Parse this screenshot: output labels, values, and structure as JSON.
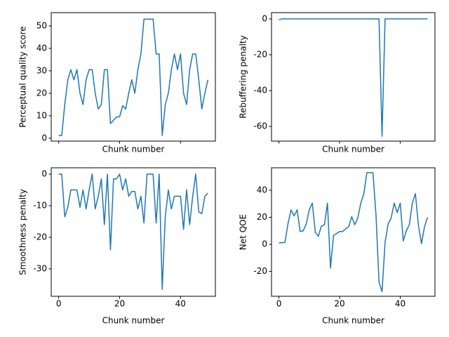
{
  "chart_data": [
    {
      "type": "line",
      "x_label": "Chunk number",
      "y_label": "Perceptual quality score",
      "xlim": [
        -2.45,
        51.45
      ],
      "xticks": [
        0,
        20,
        40
      ],
      "xtick_labels": false,
      "ylim": [
        -1.3,
        55.9
      ],
      "yticks": [
        0,
        10,
        20,
        30,
        40,
        50
      ],
      "x": [
        0,
        1,
        2,
        3,
        4,
        5,
        6,
        7,
        8,
        9,
        10,
        11,
        12,
        13,
        14,
        15,
        16,
        17,
        18,
        19,
        20,
        21,
        22,
        23,
        24,
        25,
        26,
        27,
        28,
        29,
        30,
        31,
        32,
        33,
        34,
        35,
        36,
        37,
        38,
        39,
        40,
        41,
        42,
        43,
        44,
        45,
        46,
        47,
        48,
        49
      ],
      "series": [
        {
          "color": "#1f77b4",
          "values": [
            1.2,
            1.2,
            15,
            26,
            30.5,
            26,
            30.5,
            20,
            15,
            26,
            30.5,
            30.5,
            20,
            13,
            15,
            30.5,
            30.5,
            6.5,
            8,
            9.5,
            9.5,
            14.5,
            13,
            20,
            26,
            20,
            30.5,
            37.5,
            53,
            53,
            53,
            53,
            37.5,
            37.5,
            1.2,
            15,
            20,
            30.5,
            37.5,
            30.5,
            37.5,
            20,
            15,
            30.5,
            37.5,
            37.5,
            26,
            13,
            20,
            26
          ]
        }
      ]
    },
    {
      "type": "line",
      "x_label": "Chunk number",
      "y_label": "Rebuffering penalty",
      "xlim": [
        -2.45,
        51.45
      ],
      "xticks": [
        0,
        20,
        40
      ],
      "xtick_labels": false,
      "ylim": [
        -68.2,
        3.5
      ],
      "yticks": [
        -60,
        -40,
        -20,
        0
      ],
      "x": [
        0,
        1,
        2,
        3,
        4,
        5,
        6,
        7,
        8,
        9,
        10,
        11,
        12,
        13,
        14,
        15,
        16,
        17,
        18,
        19,
        20,
        21,
        22,
        23,
        24,
        25,
        26,
        27,
        28,
        29,
        30,
        31,
        32,
        33,
        34,
        35,
        36,
        37,
        38,
        39,
        40,
        41,
        42,
        43,
        44,
        45,
        46,
        47,
        48,
        49
      ],
      "series": [
        {
          "color": "#1f77b4",
          "values": [
            -0.5,
            0,
            0,
            0,
            0,
            0,
            0,
            0,
            0,
            0,
            0,
            0,
            0,
            0,
            0,
            0,
            0,
            0,
            0,
            0,
            0,
            0,
            0,
            0,
            0,
            0,
            0,
            0,
            0,
            0,
            0,
            0,
            0,
            0,
            -65.5,
            0,
            0,
            0,
            0,
            0,
            0,
            0,
            0,
            0,
            0,
            0,
            0,
            0,
            0,
            0
          ]
        }
      ]
    },
    {
      "type": "line",
      "x_label": "Chunk number",
      "y_label": "Smoothness penalty",
      "xlim": [
        -2.45,
        51.45
      ],
      "xticks": [
        0,
        20,
        40
      ],
      "xtick_labels": true,
      "ylim": [
        -38.7,
        2
      ],
      "yticks": [
        -30,
        -20,
        -10,
        0
      ],
      "x": [
        0,
        1,
        2,
        3,
        4,
        5,
        6,
        7,
        8,
        9,
        10,
        11,
        12,
        13,
        14,
        15,
        16,
        17,
        18,
        19,
        20,
        21,
        22,
        23,
        24,
        25,
        26,
        27,
        28,
        29,
        30,
        31,
        32,
        33,
        34,
        35,
        36,
        37,
        38,
        39,
        40,
        41,
        42,
        43,
        44,
        45,
        46,
        47,
        48,
        49
      ],
      "series": [
        {
          "color": "#1f77b4",
          "values": [
            0,
            0,
            -13.5,
            -10.5,
            -5,
            -5,
            -5,
            -10.5,
            -5,
            -11,
            -5,
            0,
            -11,
            -7,
            -1.5,
            -16,
            0,
            -24,
            -1.5,
            -1.5,
            0,
            -5,
            -1.5,
            -7,
            -5.5,
            -5.5,
            -11,
            -7,
            -15.5,
            0,
            0,
            0,
            -15.5,
            0,
            -36.5,
            -13.5,
            -5,
            -11,
            -7,
            -7,
            -7,
            -17.5,
            -5,
            -16,
            -7,
            0,
            -12,
            -12.5,
            -7,
            -6
          ]
        }
      ]
    },
    {
      "type": "line",
      "x_label": "Chunk number",
      "y_label": "Net QOE",
      "xlim": [
        -2.45,
        51.45
      ],
      "xticks": [
        0,
        20,
        40
      ],
      "xtick_labels": true,
      "ylim": [
        -38.4,
        56.6
      ],
      "yticks": [
        -20,
        0,
        20,
        40
      ],
      "x": [
        0,
        1,
        2,
        3,
        4,
        5,
        6,
        7,
        8,
        9,
        10,
        11,
        12,
        13,
        14,
        15,
        16,
        17,
        18,
        19,
        20,
        21,
        22,
        23,
        24,
        25,
        26,
        27,
        28,
        29,
        30,
        31,
        32,
        33,
        34,
        35,
        36,
        37,
        38,
        39,
        40,
        41,
        42,
        43,
        44,
        45,
        46,
        47,
        48,
        49
      ],
      "series": [
        {
          "color": "#1f77b4",
          "values": [
            1.2,
            1.2,
            1.5,
            15.5,
            25.5,
            21,
            25.5,
            9.5,
            10,
            15,
            25.5,
            30.5,
            9,
            6,
            13.5,
            14.5,
            30.5,
            -17.5,
            6.5,
            8,
            9.5,
            9.5,
            11.5,
            13,
            20.5,
            14.5,
            19.5,
            30.5,
            37.5,
            53,
            53,
            53,
            22,
            -28,
            -35,
            1.5,
            15,
            19.5,
            30.5,
            23.5,
            30.5,
            2.5,
            10,
            14.5,
            30.5,
            37.5,
            14,
            0.5,
            13,
            20
          ]
        }
      ]
    }
  ]
}
